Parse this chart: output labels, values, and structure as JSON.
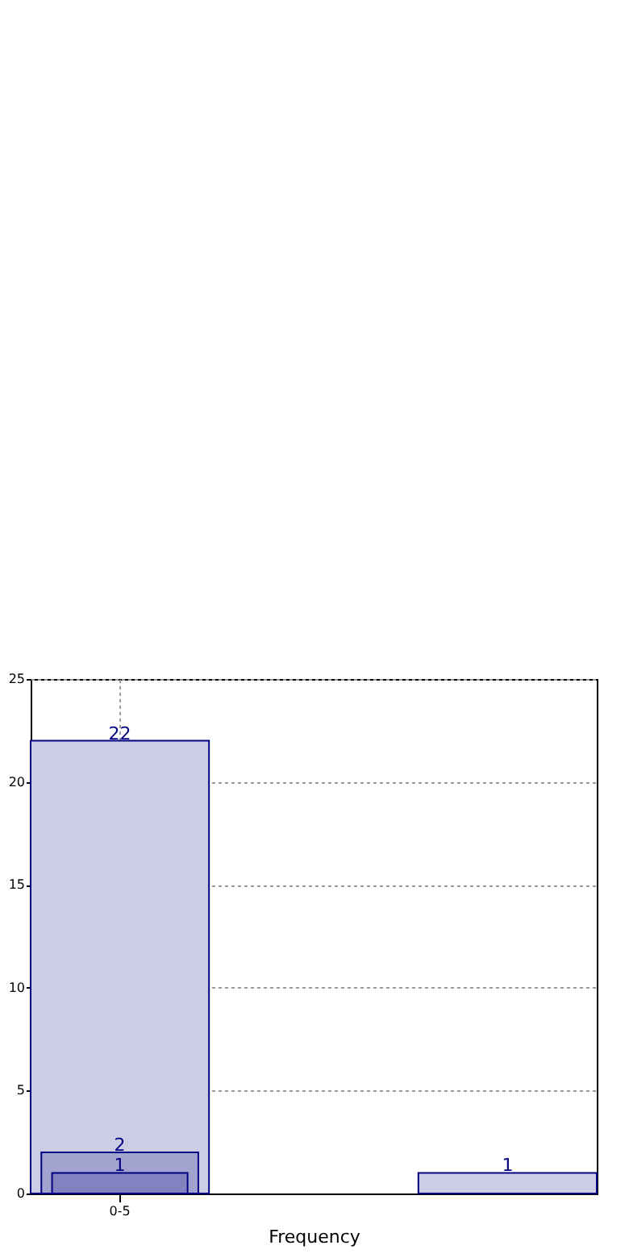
{
  "chart_data": {
    "type": "bar",
    "xlabel": "Frequency",
    "categories": [
      "0-5",
      null,
      null
    ],
    "series": [
      {
        "color": "#cccce4",
        "values": [
          22,
          null,
          1
        ]
      },
      {
        "color": "#a3a3d0",
        "values": [
          2,
          null,
          null
        ]
      },
      {
        "color": "#8282c0",
        "values": [
          1,
          null,
          null
        ]
      }
    ],
    "ylim": [
      0,
      25
    ],
    "yticks": [
      0,
      5,
      10,
      15,
      20,
      25
    ],
    "grid": true,
    "data_labels": true
  }
}
